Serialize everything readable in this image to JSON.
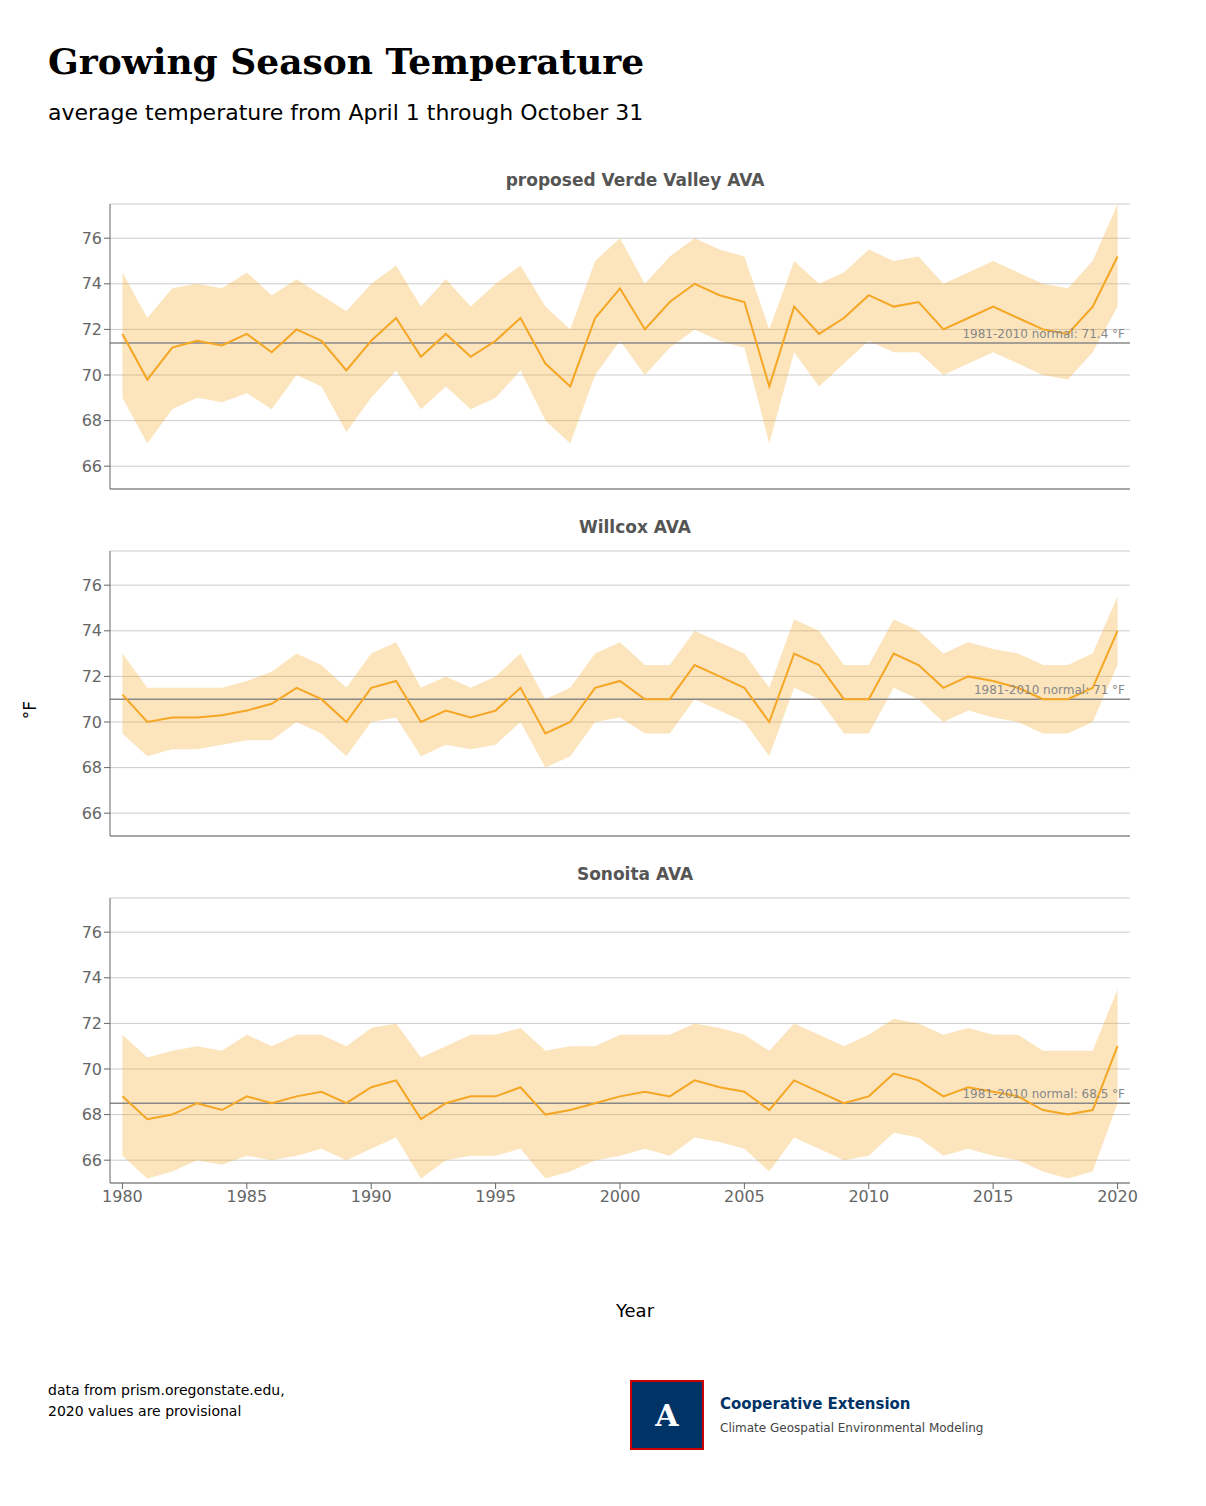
{
  "title": "Growing Season Temperature",
  "subtitle": "average temperature from April 1 through October 31",
  "xlabel": "Year",
  "ylabel": "°F",
  "annotations": [
    {
      "text": "data from prism.oregonstate.edu,\n2020 values are provisional"
    },
    {
      "text": "A",
      "color": "#ffffff",
      "background": "#003366",
      "border": "#cc0000"
    },
    {
      "text": "Cooperative Extension",
      "color": "#003366"
    },
    {
      "text": "Climate Geospatial Environmental Modeling",
      "color": "#444444"
    }
  ],
  "chart_data": [
    {
      "type": "line",
      "title": "proposed Verde Valley AVA",
      "x": [
        1980,
        1981,
        1982,
        1983,
        1984,
        1985,
        1986,
        1987,
        1988,
        1989,
        1990,
        1991,
        1992,
        1993,
        1994,
        1995,
        1996,
        1997,
        1998,
        1999,
        2000,
        2001,
        2002,
        2003,
        2004,
        2005,
        2006,
        2007,
        2008,
        2009,
        2010,
        2011,
        2012,
        2013,
        2014,
        2015,
        2016,
        2017,
        2018,
        2019,
        2020
      ],
      "series": [
        {
          "type": "area",
          "color": "#F5A623",
          "lower": [
            69.0,
            67.0,
            68.5,
            69.0,
            68.8,
            69.2,
            68.5,
            70.0,
            69.5,
            67.5,
            69.0,
            70.2,
            68.5,
            69.5,
            68.5,
            69.0,
            70.2,
            68.0,
            67.0,
            70.0,
            71.5,
            70.0,
            71.2,
            72.0,
            71.5,
            71.2,
            67.0,
            71.0,
            69.5,
            70.5,
            71.5,
            71.0,
            71.0,
            70.0,
            70.5,
            71.0,
            70.5,
            70.0,
            69.8,
            71.0,
            73.0
          ],
          "upper": [
            74.5,
            72.5,
            73.8,
            74.0,
            73.8,
            74.5,
            73.5,
            74.2,
            73.5,
            72.8,
            74.0,
            74.8,
            73.0,
            74.2,
            73.0,
            74.0,
            74.8,
            73.0,
            72.0,
            75.0,
            76.0,
            74.0,
            75.2,
            76.0,
            75.5,
            75.2,
            72.0,
            75.0,
            74.0,
            74.5,
            75.5,
            75.0,
            75.2,
            74.0,
            74.5,
            75.0,
            74.5,
            74.0,
            73.8,
            75.0,
            77.5
          ]
        },
        {
          "type": "line",
          "color": "#F5A623",
          "values": [
            71.8,
            69.8,
            71.2,
            71.5,
            71.3,
            71.8,
            71.0,
            72.0,
            71.5,
            70.2,
            71.5,
            72.5,
            70.8,
            71.8,
            70.8,
            71.5,
            72.5,
            70.5,
            69.5,
            72.5,
            73.8,
            72.0,
            73.2,
            74.0,
            73.5,
            73.2,
            69.5,
            73.0,
            71.8,
            72.5,
            73.5,
            73.0,
            73.2,
            72.0,
            72.5,
            73.0,
            72.5,
            72.0,
            71.8,
            73.0,
            75.2
          ]
        }
      ],
      "annotations": [
        {
          "y": 71.4,
          "text": "1981-2010 normal: 71.4 °F",
          "color": "#888888"
        }
      ],
      "xlim": [
        1979.5,
        2020.5
      ],
      "xticks": [
        1980,
        1985,
        1990,
        1995,
        2000,
        2005,
        2010,
        2015,
        2020
      ],
      "ylim": [
        65.0,
        77.5
      ],
      "yticks": [
        66,
        68,
        70,
        72,
        74,
        76
      ],
      "grid": true,
      "tick_labels": "y"
    },
    {
      "type": "line",
      "title": "Willcox AVA",
      "x": [
        1980,
        1981,
        1982,
        1983,
        1984,
        1985,
        1986,
        1987,
        1988,
        1989,
        1990,
        1991,
        1992,
        1993,
        1994,
        1995,
        1996,
        1997,
        1998,
        1999,
        2000,
        2001,
        2002,
        2003,
        2004,
        2005,
        2006,
        2007,
        2008,
        2009,
        2010,
        2011,
        2012,
        2013,
        2014,
        2015,
        2016,
        2017,
        2018,
        2019,
        2020
      ],
      "series": [
        {
          "type": "area",
          "color": "#F5A623",
          "lower": [
            69.5,
            68.5,
            68.8,
            68.8,
            69.0,
            69.2,
            69.2,
            70.0,
            69.5,
            68.5,
            70.0,
            70.2,
            68.5,
            69.0,
            68.8,
            69.0,
            70.0,
            68.0,
            68.5,
            70.0,
            70.2,
            69.5,
            69.5,
            71.0,
            70.5,
            70.0,
            68.5,
            71.5,
            71.0,
            69.5,
            69.5,
            71.5,
            71.0,
            70.0,
            70.5,
            70.2,
            70.0,
            69.5,
            69.5,
            70.0,
            72.5
          ],
          "upper": [
            73.0,
            71.5,
            71.5,
            71.5,
            71.5,
            71.8,
            72.2,
            73.0,
            72.5,
            71.5,
            73.0,
            73.5,
            71.5,
            72.0,
            71.5,
            72.0,
            73.0,
            71.0,
            71.5,
            73.0,
            73.5,
            72.5,
            72.5,
            74.0,
            73.5,
            73.0,
            71.5,
            74.5,
            74.0,
            72.5,
            72.5,
            74.5,
            74.0,
            73.0,
            73.5,
            73.2,
            73.0,
            72.5,
            72.5,
            73.0,
            75.5
          ]
        },
        {
          "type": "line",
          "color": "#F5A623",
          "values": [
            71.2,
            70.0,
            70.2,
            70.2,
            70.3,
            70.5,
            70.8,
            71.5,
            71.0,
            70.0,
            71.5,
            71.8,
            70.0,
            70.5,
            70.2,
            70.5,
            71.5,
            69.5,
            70.0,
            71.5,
            71.8,
            71.0,
            71.0,
            72.5,
            72.0,
            71.5,
            70.0,
            73.0,
            72.5,
            71.0,
            71.0,
            73.0,
            72.5,
            71.5,
            72.0,
            71.8,
            71.5,
            71.0,
            71.0,
            71.5,
            74.0
          ]
        }
      ],
      "annotations": [
        {
          "y": 71.0,
          "text": "1981-2010 normal: 71 °F",
          "color": "#888888"
        }
      ],
      "xlim": [
        1979.5,
        2020.5
      ],
      "xticks": [
        1980,
        1985,
        1990,
        1995,
        2000,
        2005,
        2010,
        2015,
        2020
      ],
      "ylim": [
        65.0,
        77.5
      ],
      "yticks": [
        66,
        68,
        70,
        72,
        74,
        76
      ],
      "grid": true,
      "tick_labels": "y"
    },
    {
      "type": "line",
      "title": "Sonoita AVA",
      "x": [
        1980,
        1981,
        1982,
        1983,
        1984,
        1985,
        1986,
        1987,
        1988,
        1989,
        1990,
        1991,
        1992,
        1993,
        1994,
        1995,
        1996,
        1997,
        1998,
        1999,
        2000,
        2001,
        2002,
        2003,
        2004,
        2005,
        2006,
        2007,
        2008,
        2009,
        2010,
        2011,
        2012,
        2013,
        2014,
        2015,
        2016,
        2017,
        2018,
        2019,
        2020
      ],
      "series": [
        {
          "type": "area",
          "color": "#F5A623",
          "lower": [
            66.2,
            65.2,
            65.5,
            66.0,
            65.8,
            66.2,
            66.0,
            66.2,
            66.5,
            66.0,
            66.5,
            67.0,
            65.2,
            66.0,
            66.2,
            66.2,
            66.5,
            65.2,
            65.5,
            66.0,
            66.2,
            66.5,
            66.2,
            67.0,
            66.8,
            66.5,
            65.5,
            67.0,
            66.5,
            66.0,
            66.2,
            67.2,
            67.0,
            66.2,
            66.5,
            66.2,
            66.0,
            65.5,
            65.2,
            65.5,
            68.5
          ],
          "upper": [
            71.5,
            70.5,
            70.8,
            71.0,
            70.8,
            71.5,
            71.0,
            71.5,
            71.5,
            71.0,
            71.8,
            72.0,
            70.5,
            71.0,
            71.5,
            71.5,
            71.8,
            70.8,
            71.0,
            71.0,
            71.5,
            71.5,
            71.5,
            72.0,
            71.8,
            71.5,
            70.8,
            72.0,
            71.5,
            71.0,
            71.5,
            72.2,
            72.0,
            71.5,
            71.8,
            71.5,
            71.5,
            70.8,
            70.8,
            70.8,
            73.5
          ]
        },
        {
          "type": "line",
          "color": "#F5A623",
          "values": [
            68.8,
            67.8,
            68.0,
            68.5,
            68.2,
            68.8,
            68.5,
            68.8,
            69.0,
            68.5,
            69.2,
            69.5,
            67.8,
            68.5,
            68.8,
            68.8,
            69.2,
            68.0,
            68.2,
            68.5,
            68.8,
            69.0,
            68.8,
            69.5,
            69.2,
            69.0,
            68.2,
            69.5,
            69.0,
            68.5,
            68.8,
            69.8,
            69.5,
            68.8,
            69.2,
            69.0,
            68.8,
            68.2,
            68.0,
            68.2,
            71.0
          ]
        }
      ],
      "annotations": [
        {
          "y": 68.5,
          "text": "1981-2010 normal: 68.5 °F",
          "color": "#888888"
        }
      ],
      "xlim": [
        1979.5,
        2020.5
      ],
      "xticks": [
        1980,
        1985,
        1990,
        1995,
        2000,
        2005,
        2010,
        2015,
        2020
      ],
      "ylim": [
        65.0,
        77.5
      ],
      "yticks": [
        66,
        68,
        70,
        72,
        74,
        76
      ],
      "grid": true
    }
  ]
}
